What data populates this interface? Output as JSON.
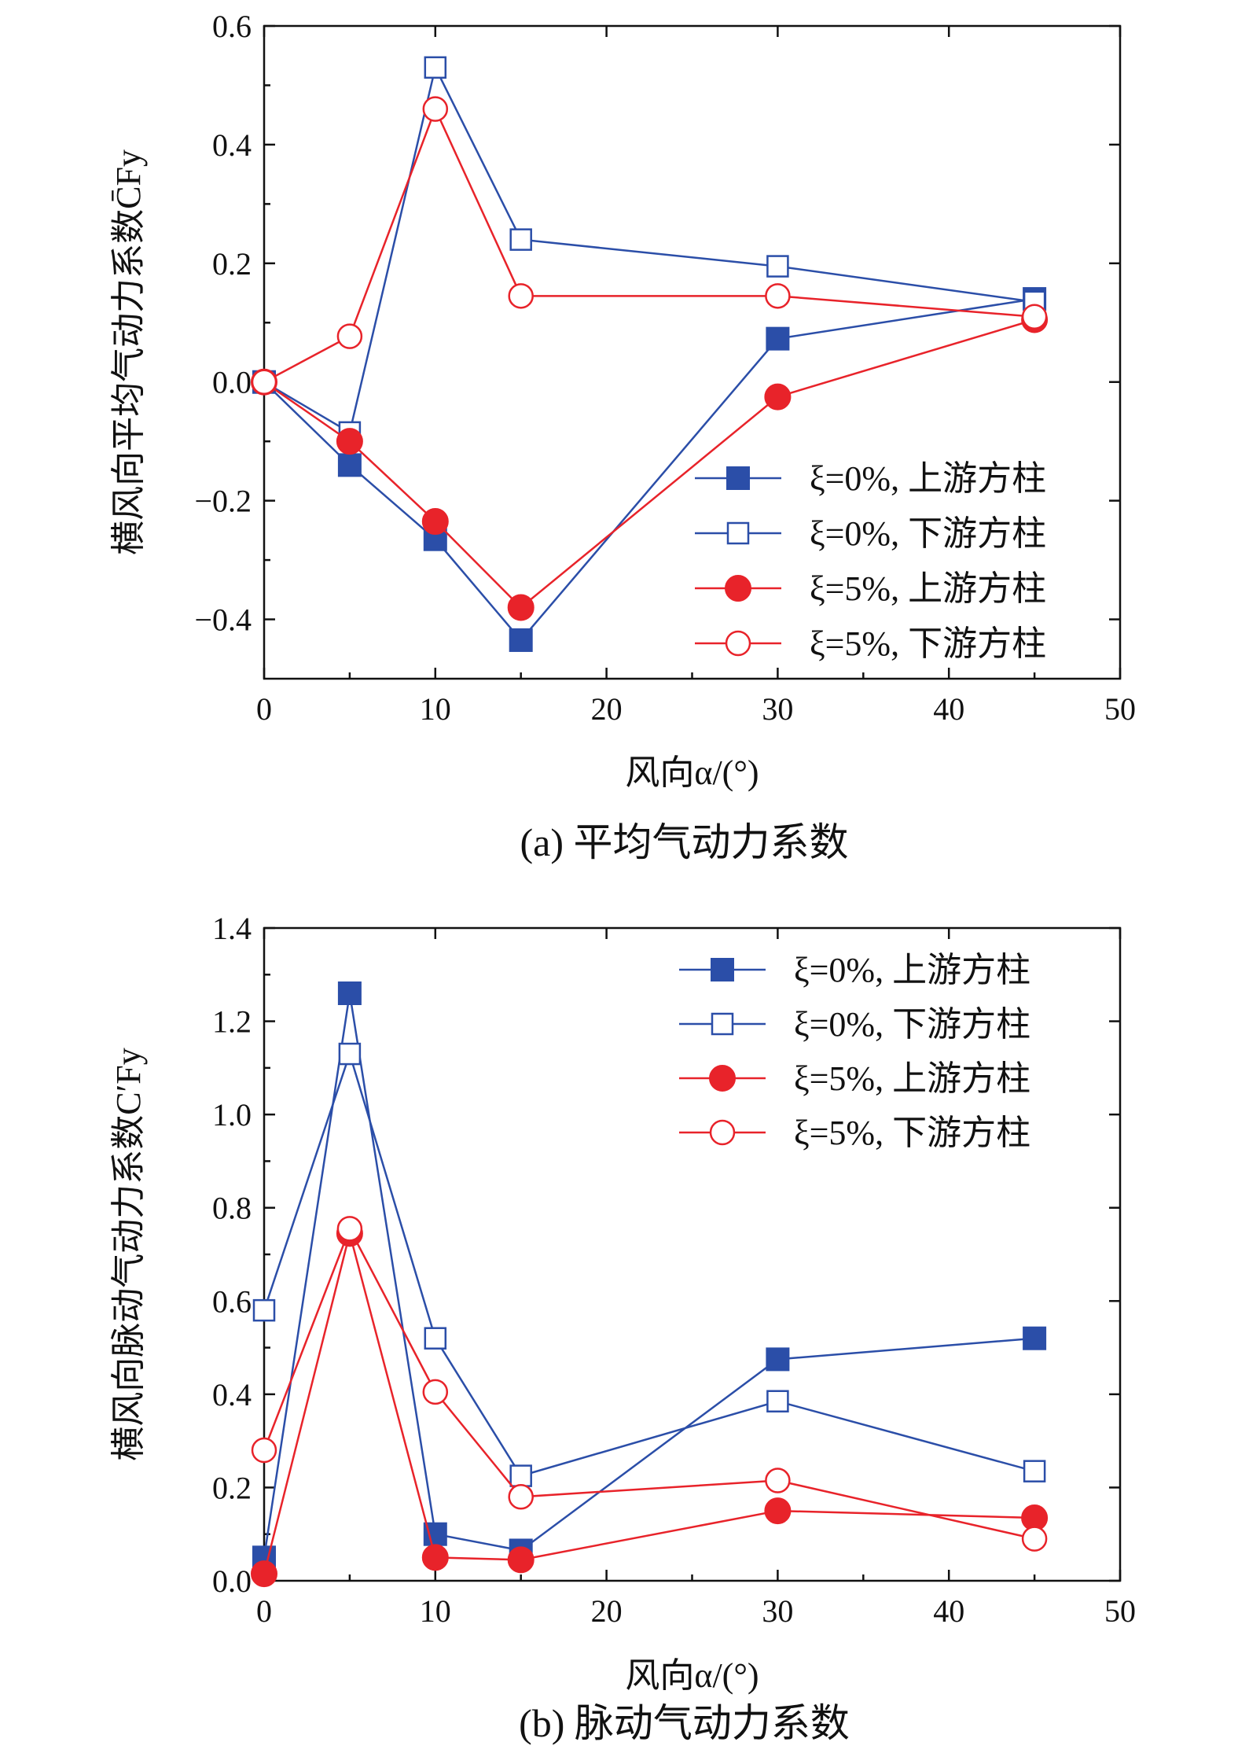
{
  "chart_data": [
    {
      "type": "line",
      "caption": "(a) 平均气动力系数",
      "xlabel": "风向α/(°)",
      "ylabel": "横风向平均气动力系数C̄Fy",
      "xlim": [
        0,
        50
      ],
      "ylim": [
        -0.5,
        0.6
      ],
      "xticks": [
        0,
        10,
        20,
        30,
        40,
        50
      ],
      "xtick_labels": [
        "0",
        "10",
        "20",
        "30",
        "40",
        "50"
      ],
      "yticks": [
        -0.4,
        -0.2,
        0.0,
        0.2,
        0.4,
        0.6
      ],
      "ytick_labels": [
        "−0.4",
        "−0.2",
        "0.0",
        "0.2",
        "0.4",
        "0.6"
      ],
      "legend_position": "bottom-right",
      "x": [
        0,
        5,
        10,
        15,
        30,
        45
      ],
      "series": [
        {
          "name": "ξ=0%, 上游方柱",
          "color": "#2b4ea8",
          "marker": "square-filled",
          "values": [
            0.0,
            -0.14,
            -0.265,
            -0.435,
            0.073,
            0.14
          ]
        },
        {
          "name": "ξ=0%, 下游方柱",
          "color": "#2b4ea8",
          "marker": "square-open",
          "values": [
            0.0,
            -0.085,
            0.53,
            0.24,
            0.195,
            0.135
          ]
        },
        {
          "name": "ξ=5%, 上游方柱",
          "color": "#e8232a",
          "marker": "circle-filled",
          "values": [
            0.0,
            -0.1,
            -0.235,
            -0.38,
            -0.025,
            0.105
          ]
        },
        {
          "name": "ξ=5%, 下游方柱",
          "color": "#e8232a",
          "marker": "circle-open",
          "values": [
            0.0,
            0.077,
            0.46,
            0.145,
            0.145,
            0.11
          ]
        }
      ]
    },
    {
      "type": "line",
      "caption": "(b) 脉动气动力系数",
      "xlabel": "风向α/(°)",
      "ylabel": "横风向脉动气动力系数C′Fy",
      "xlim": [
        0,
        50
      ],
      "ylim": [
        0.0,
        1.4
      ],
      "xticks": [
        0,
        10,
        20,
        30,
        40,
        50
      ],
      "xtick_labels": [
        "0",
        "10",
        "20",
        "30",
        "40",
        "50"
      ],
      "yticks": [
        0.0,
        0.2,
        0.4,
        0.6,
        0.8,
        1.0,
        1.2,
        1.4
      ],
      "ytick_labels": [
        "0.0",
        "0.2",
        "0.4",
        "0.6",
        "0.8",
        "1.0",
        "1.2",
        "1.4"
      ],
      "legend_position": "top-right",
      "x": [
        0,
        5,
        10,
        15,
        30,
        45
      ],
      "series": [
        {
          "name": "ξ=0%, 上游方柱",
          "color": "#2b4ea8",
          "marker": "square-filled",
          "values": [
            0.05,
            1.26,
            0.1,
            0.065,
            0.475,
            0.52
          ]
        },
        {
          "name": "ξ=0%, 下游方柱",
          "color": "#2b4ea8",
          "marker": "square-open",
          "values": [
            0.58,
            1.13,
            0.52,
            0.225,
            0.385,
            0.235
          ]
        },
        {
          "name": "ξ=5%, 上游方柱",
          "color": "#e8232a",
          "marker": "circle-filled",
          "values": [
            0.015,
            0.745,
            0.05,
            0.045,
            0.15,
            0.135
          ]
        },
        {
          "name": "ξ=5%, 下游方柱",
          "color": "#e8232a",
          "marker": "circle-open",
          "values": [
            0.28,
            0.755,
            0.405,
            0.18,
            0.215,
            0.09
          ]
        }
      ]
    }
  ]
}
